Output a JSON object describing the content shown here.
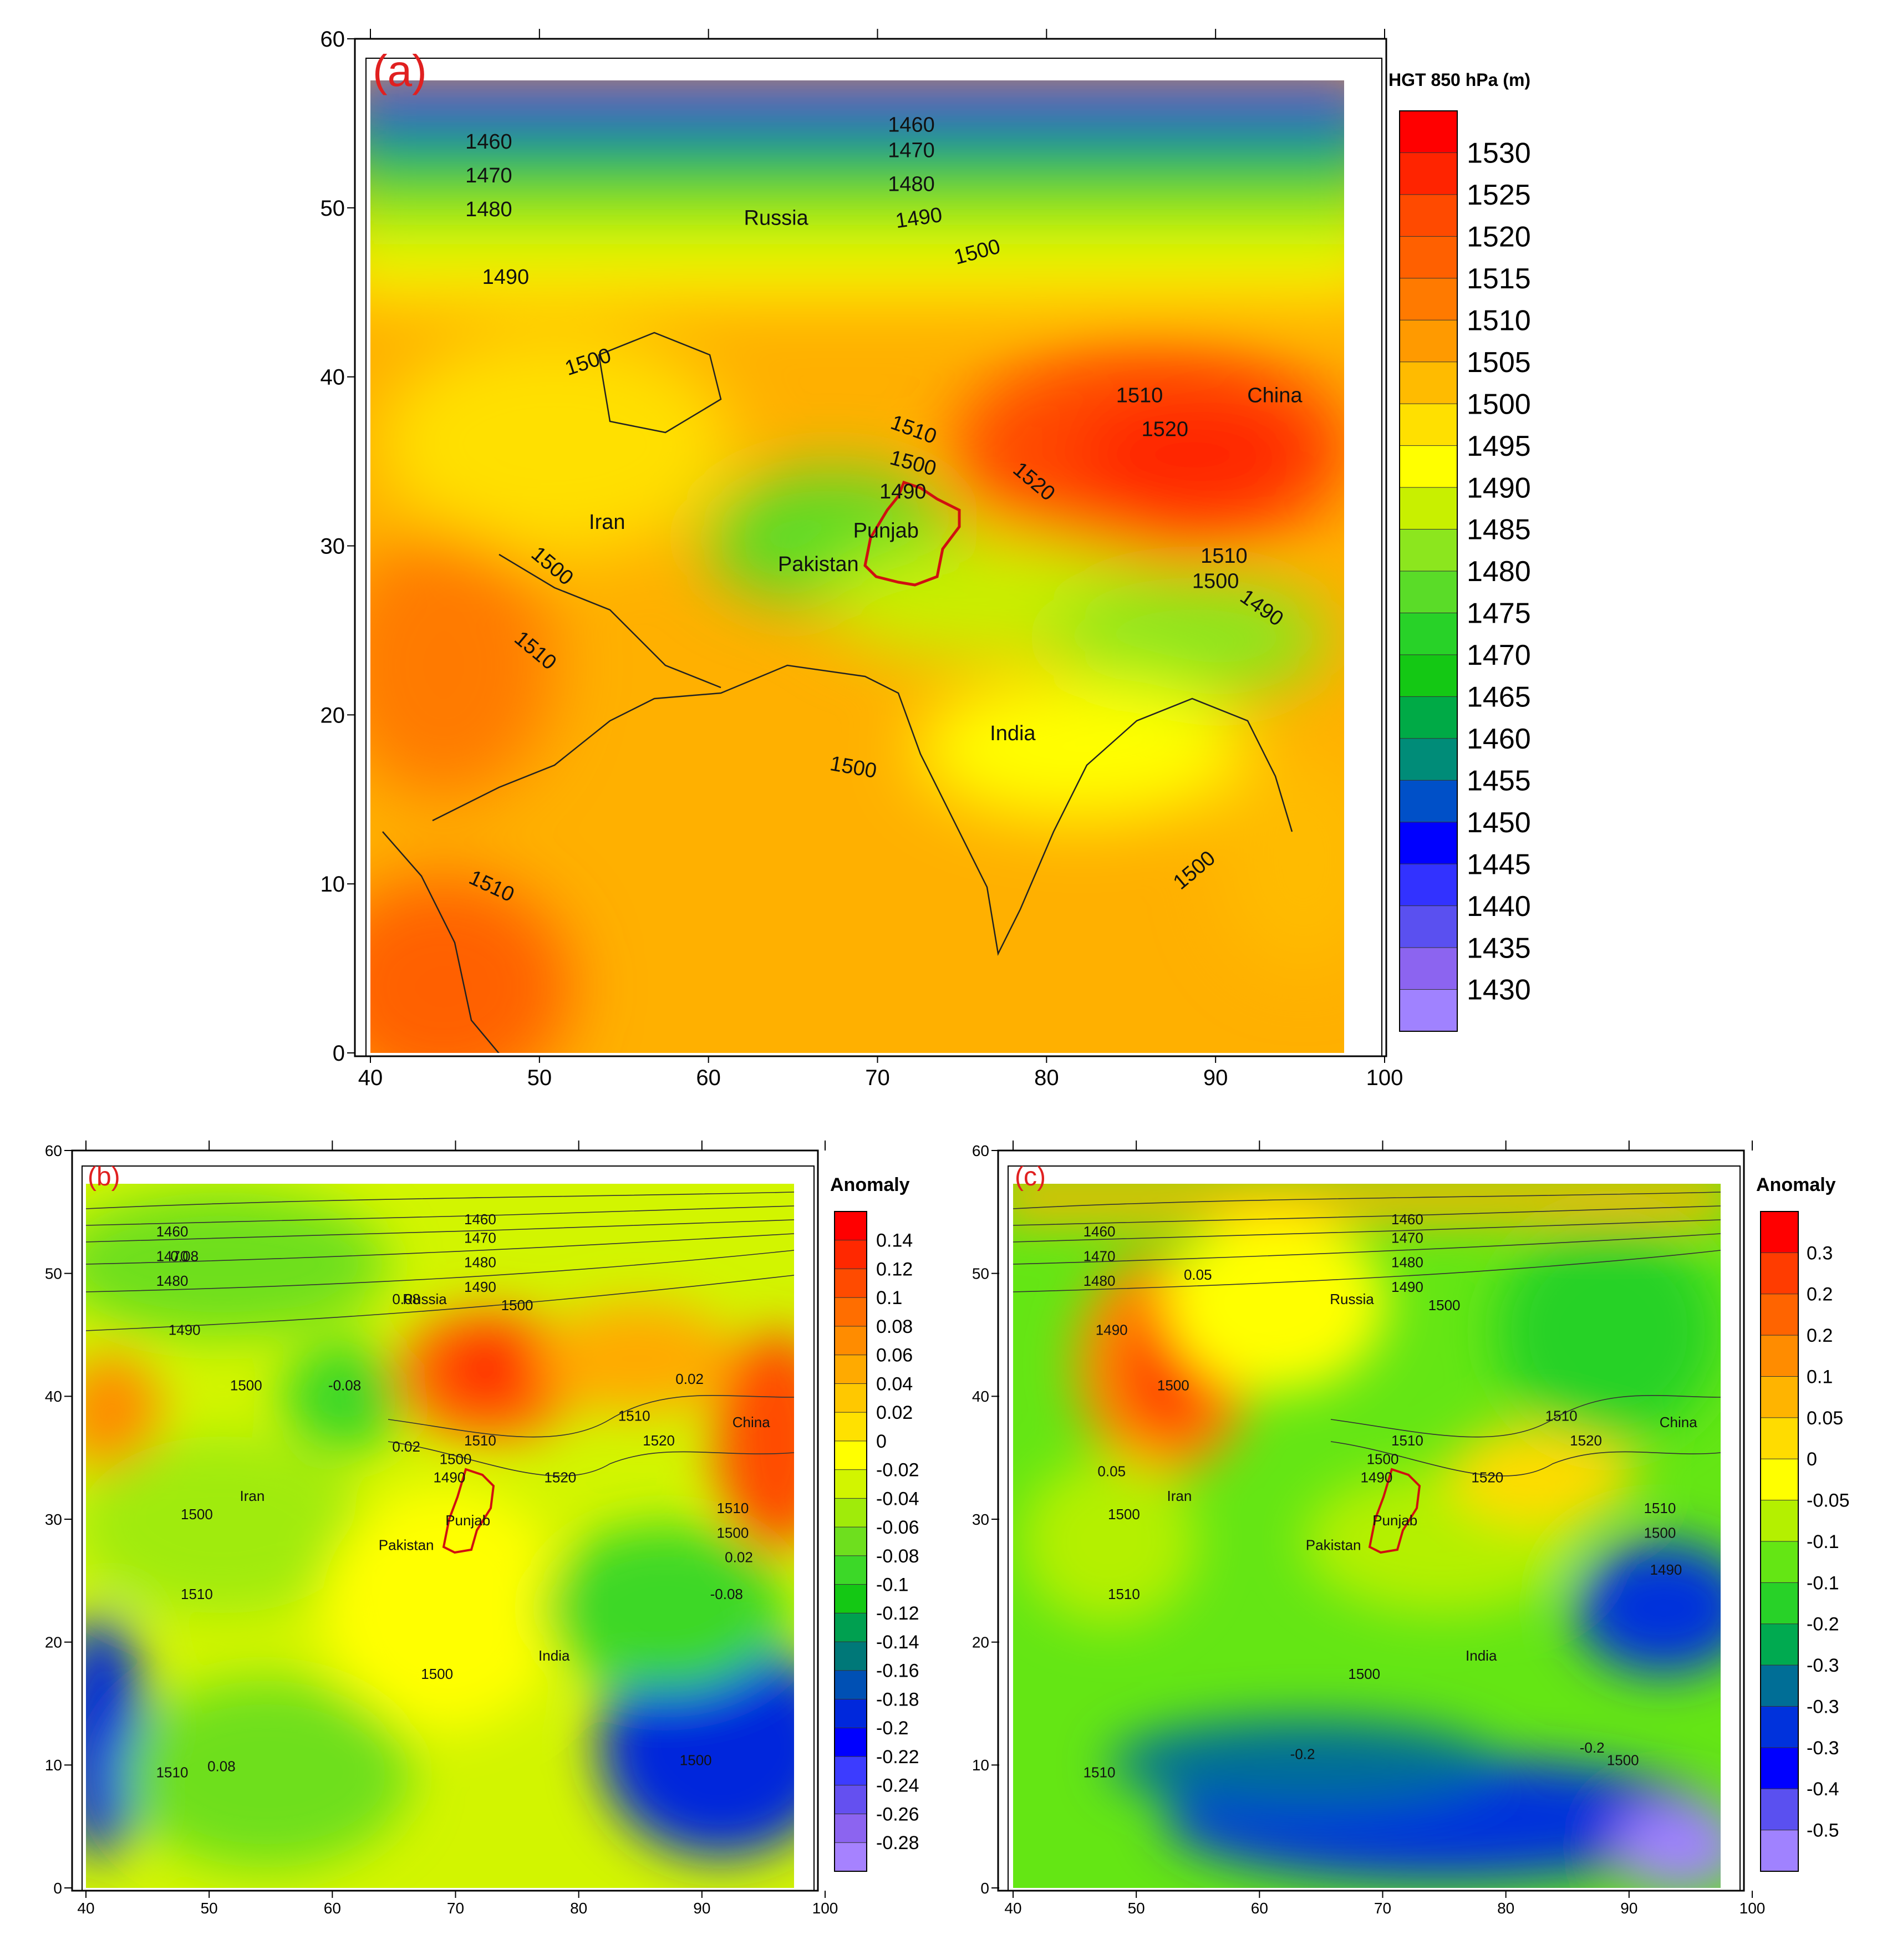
{
  "panels": [
    {
      "id": "a",
      "label": "(a)",
      "legend": {
        "title": "HGT 850 hPa (m)",
        "labels": [
          "1530",
          "1525",
          "1520",
          "1515",
          "1510",
          "1505",
          "1500",
          "1495",
          "1490",
          "1485",
          "1480",
          "1475",
          "1470",
          "1465",
          "1460",
          "1455",
          "1450",
          "1445",
          "1440",
          "1435",
          "1430"
        ],
        "colors": [
          "#ff0000",
          "#ff2400",
          "#ff4a00",
          "#ff6000",
          "#ff7a00",
          "#ff9a00",
          "#ffbb00",
          "#ffe000",
          "#ffff00",
          "#c8f000",
          "#8ce61e",
          "#5adc28",
          "#28d228",
          "#14c814",
          "#00aa46",
          "#008c78",
          "#0050c8",
          "#0000ff",
          "#3232ff",
          "#5a50f0",
          "#8c64f0",
          "#a082ff"
        ]
      },
      "x_ticks": [
        "40",
        "50",
        "60",
        "70",
        "80",
        "90",
        "100"
      ],
      "y_ticks": [
        "0",
        "10",
        "20",
        "30",
        "40",
        "50",
        "60"
      ],
      "place_labels": [
        {
          "name": "Russia",
          "lon": 64,
          "lat": 49
        },
        {
          "name": "China",
          "lon": 93.5,
          "lat": 38.5
        },
        {
          "name": "Iran",
          "lon": 54,
          "lat": 31
        },
        {
          "name": "Pakistan",
          "lon": 66.5,
          "lat": 28.5
        },
        {
          "name": "Punjab",
          "lon": 70.5,
          "lat": 30.5
        },
        {
          "name": "India",
          "lon": 78,
          "lat": 18.5
        }
      ],
      "contour_labels": [
        {
          "text": "1460",
          "lon": 47,
          "lat": 53.5,
          "rot": 0
        },
        {
          "text": "1470",
          "lon": 47,
          "lat": 51.5,
          "rot": 0
        },
        {
          "text": "1480",
          "lon": 47,
          "lat": 49.5,
          "rot": 0
        },
        {
          "text": "1490",
          "lon": 48,
          "lat": 45.5,
          "rot": 0
        },
        {
          "text": "1460",
          "lon": 72,
          "lat": 54.5,
          "rot": 0
        },
        {
          "text": "1470",
          "lon": 72,
          "lat": 53,
          "rot": 0
        },
        {
          "text": "1480",
          "lon": 72,
          "lat": 51,
          "rot": 0
        },
        {
          "text": "1490",
          "lon": 72.5,
          "lat": 49,
          "rot": -8
        },
        {
          "text": "1500",
          "lon": 76,
          "lat": 47,
          "rot": -15
        },
        {
          "text": "1500",
          "lon": 53,
          "lat": 40.5,
          "rot": -18
        },
        {
          "text": "1510",
          "lon": 72,
          "lat": 36.5,
          "rot": 20
        },
        {
          "text": "1500",
          "lon": 72,
          "lat": 34.5,
          "rot": 15
        },
        {
          "text": "1490",
          "lon": 71.5,
          "lat": 32.8,
          "rot": 0
        },
        {
          "text": "1510",
          "lon": 85.5,
          "lat": 38.5,
          "rot": 0
        },
        {
          "text": "1520",
          "lon": 87,
          "lat": 36.5,
          "rot": 0
        },
        {
          "text": "1520",
          "lon": 79,
          "lat": 33.5,
          "rot": 40
        },
        {
          "text": "1510",
          "lon": 90.5,
          "lat": 29,
          "rot": 0
        },
        {
          "text": "1500",
          "lon": 90,
          "lat": 27.5,
          "rot": 0
        },
        {
          "text": "1490",
          "lon": 92.5,
          "lat": 26,
          "rot": 35
        },
        {
          "text": "1500",
          "lon": 50.5,
          "lat": 28.5,
          "rot": 40
        },
        {
          "text": "1510",
          "lon": 49.5,
          "lat": 23.5,
          "rot": 40
        },
        {
          "text": "1500",
          "lon": 68.5,
          "lat": 16.5,
          "rot": 10
        },
        {
          "text": "1510",
          "lon": 47,
          "lat": 9.5,
          "rot": 25
        },
        {
          "text": "1500",
          "lon": 89,
          "lat": 10.5,
          "rot": -40
        }
      ]
    },
    {
      "id": "b",
      "label": "(b)",
      "legend": {
        "title": "Anomaly",
        "labels": [
          "0.14",
          "0.12",
          "0.1",
          "0.08",
          "0.06",
          "0.04",
          "0.02",
          "0",
          "-0.02",
          "-0.04",
          "-0.06",
          "-0.08",
          "-0.1",
          "-0.12",
          "-0.14",
          "-0.16",
          "-0.18",
          "-0.2",
          "-0.22",
          "-0.24",
          "-0.26",
          "-0.28"
        ],
        "colors": [
          "#ff0000",
          "#ff2800",
          "#ff4b00",
          "#ff6e00",
          "#ff8c00",
          "#ffaa00",
          "#ffc800",
          "#ffe100",
          "#ffff00",
          "#d2f500",
          "#a0eb0a",
          "#6edf1e",
          "#3cd828",
          "#14c814",
          "#00a050",
          "#007878",
          "#0050b4",
          "#0028dc",
          "#0000ff",
          "#3c3cff",
          "#6450f0",
          "#8c64f0",
          "#a682ff"
        ]
      },
      "x_ticks": [
        "40",
        "50",
        "60",
        "70",
        "80",
        "90",
        "100"
      ],
      "y_ticks": [
        "0",
        "10",
        "20",
        "30",
        "40",
        "50",
        "60"
      ],
      "place_labels": [
        {
          "name": "Russia",
          "lon": 67.5,
          "lat": 47.5
        },
        {
          "name": "China",
          "lon": 94,
          "lat": 37.5
        },
        {
          "name": "Iran",
          "lon": 53.5,
          "lat": 31.5
        },
        {
          "name": "Pakistan",
          "lon": 66,
          "lat": 27.5
        },
        {
          "name": "Punjab",
          "lon": 71,
          "lat": 29.5
        },
        {
          "name": "India",
          "lon": 78,
          "lat": 18.5
        }
      ],
      "contour_labels": [
        {
          "text": "1460",
          "lon": 47,
          "lat": 53
        },
        {
          "text": "1470",
          "lon": 47,
          "lat": 51
        },
        {
          "text": "1480",
          "lon": 47,
          "lat": 49
        },
        {
          "text": "1490",
          "lon": 48,
          "lat": 45
        },
        {
          "text": "1460",
          "lon": 72,
          "lat": 54
        },
        {
          "text": "1470",
          "lon": 72,
          "lat": 52.5
        },
        {
          "text": "1480",
          "lon": 72,
          "lat": 50.5
        },
        {
          "text": "1490",
          "lon": 72,
          "lat": 48.5
        },
        {
          "text": "1500",
          "lon": 75,
          "lat": 47
        },
        {
          "text": "1500",
          "lon": 53,
          "lat": 40.5
        },
        {
          "text": "1510",
          "lon": 72,
          "lat": 36
        },
        {
          "text": "1500",
          "lon": 70,
          "lat": 34.5
        },
        {
          "text": "1490",
          "lon": 69.5,
          "lat": 33
        },
        {
          "text": "1510",
          "lon": 84.5,
          "lat": 38
        },
        {
          "text": "1520",
          "lon": 86.5,
          "lat": 36
        },
        {
          "text": "1520",
          "lon": 78.5,
          "lat": 33
        },
        {
          "text": "1510",
          "lon": 92.5,
          "lat": 30.5
        },
        {
          "text": "1500",
          "lon": 92.5,
          "lat": 28.5
        },
        {
          "text": "1500",
          "lon": 49,
          "lat": 30
        },
        {
          "text": "1510",
          "lon": 49,
          "lat": 23.5
        },
        {
          "text": "1500",
          "lon": 68.5,
          "lat": 17
        },
        {
          "text": "1510",
          "lon": 47,
          "lat": 9
        },
        {
          "text": "1500",
          "lon": 89.5,
          "lat": 10
        },
        {
          "text": "0.08",
          "lon": 48,
          "lat": 51
        },
        {
          "text": "0.08",
          "lon": 66,
          "lat": 47.5
        },
        {
          "text": "-0.08",
          "lon": 61,
          "lat": 40.5
        },
        {
          "text": "0.02",
          "lon": 89,
          "lat": 41
        },
        {
          "text": "0.02",
          "lon": 66,
          "lat": 35.5
        },
        {
          "text": "0.02",
          "lon": 93,
          "lat": 26.5
        },
        {
          "text": "-0.08",
          "lon": 92,
          "lat": 23.5
        },
        {
          "text": "0.08",
          "lon": 51,
          "lat": 9.5
        }
      ]
    },
    {
      "id": "c",
      "label": "(c)",
      "legend": {
        "title": "Anomaly",
        "labels": [
          "0.3",
          "0.2",
          "0.2",
          "0.1",
          "0.05",
          "0",
          "-0.05",
          "-0.1",
          "-0.1",
          "-0.2",
          "-0.3",
          "-0.3",
          "-0.3",
          "-0.4",
          "-0.5"
        ],
        "colors": [
          "#ff0000",
          "#ff3c00",
          "#ff6400",
          "#ff8c00",
          "#ffb400",
          "#ffdc00",
          "#ffff00",
          "#b4f000",
          "#64e614",
          "#28d228",
          "#00aa50",
          "#006e96",
          "#0032dc",
          "#0000ff",
          "#5a50f0",
          "#a082ff"
        ]
      },
      "x_ticks": [
        "40",
        "50",
        "60",
        "70",
        "80",
        "90",
        "100"
      ],
      "y_ticks": [
        "0",
        "10",
        "20",
        "30",
        "40",
        "50",
        "60"
      ],
      "place_labels": [
        {
          "name": "Russia",
          "lon": 67.5,
          "lat": 47.5
        },
        {
          "name": "China",
          "lon": 94,
          "lat": 37.5
        },
        {
          "name": "Iran",
          "lon": 53.5,
          "lat": 31.5
        },
        {
          "name": "Pakistan",
          "lon": 66,
          "lat": 27.5
        },
        {
          "name": "Punjab",
          "lon": 71,
          "lat": 29.5
        },
        {
          "name": "India",
          "lon": 78,
          "lat": 18.5
        }
      ],
      "contour_labels": [
        {
          "text": "1460",
          "lon": 47,
          "lat": 53
        },
        {
          "text": "1470",
          "lon": 47,
          "lat": 51
        },
        {
          "text": "1480",
          "lon": 47,
          "lat": 49
        },
        {
          "text": "1490",
          "lon": 48,
          "lat": 45
        },
        {
          "text": "1460",
          "lon": 72,
          "lat": 54
        },
        {
          "text": "1470",
          "lon": 72,
          "lat": 52.5
        },
        {
          "text": "1480",
          "lon": 72,
          "lat": 50.5
        },
        {
          "text": "1490",
          "lon": 72,
          "lat": 48.5
        },
        {
          "text": "1500",
          "lon": 75,
          "lat": 47
        },
        {
          "text": "1500",
          "lon": 53,
          "lat": 40.5
        },
        {
          "text": "1510",
          "lon": 72,
          "lat": 36
        },
        {
          "text": "1500",
          "lon": 70,
          "lat": 34.5
        },
        {
          "text": "1490",
          "lon": 69.5,
          "lat": 33
        },
        {
          "text": "1510",
          "lon": 84.5,
          "lat": 38
        },
        {
          "text": "1520",
          "lon": 86.5,
          "lat": 36
        },
        {
          "text": "1520",
          "lon": 78.5,
          "lat": 33
        },
        {
          "text": "1510",
          "lon": 92.5,
          "lat": 30.5
        },
        {
          "text": "1500",
          "lon": 92.5,
          "lat": 28.5
        },
        {
          "text": "1490",
          "lon": 93,
          "lat": 25.5
        },
        {
          "text": "1500",
          "lon": 49,
          "lat": 30
        },
        {
          "text": "1510",
          "lon": 49,
          "lat": 23.5
        },
        {
          "text": "1500",
          "lon": 68.5,
          "lat": 17
        },
        {
          "text": "1510",
          "lon": 47,
          "lat": 9
        },
        {
          "text": "1500",
          "lon": 89.5,
          "lat": 10
        },
        {
          "text": "0.05",
          "lon": 55,
          "lat": 49.5
        },
        {
          "text": "0.05",
          "lon": 48,
          "lat": 33.5
        },
        {
          "text": "-0.2",
          "lon": 63.5,
          "lat": 10.5
        },
        {
          "text": "-0.2",
          "lon": 87,
          "lat": 11
        }
      ]
    }
  ]
}
